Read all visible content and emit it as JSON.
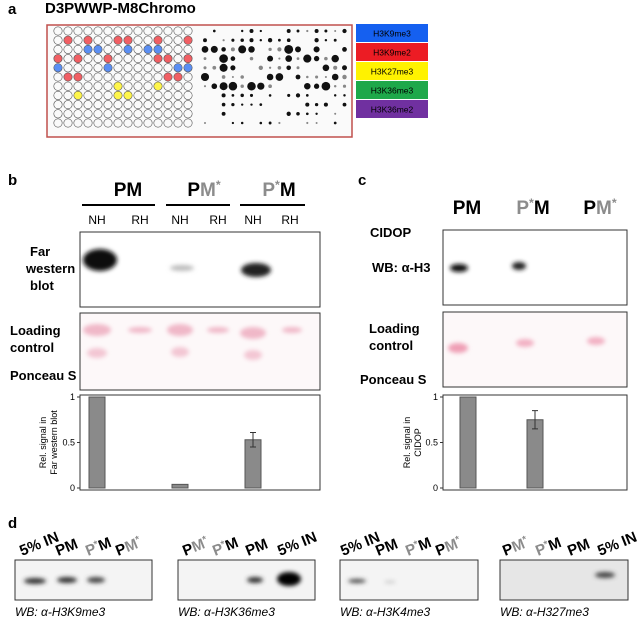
{
  "panel_a": {
    "letter": "a",
    "title": "D3PWWP-M8Chromo",
    "legend": [
      {
        "label": "H3K9me3",
        "color": "#1560f0"
      },
      {
        "label": "H3K9me2",
        "color": "#ec1c24"
      },
      {
        "label": "H3K27me3",
        "color": "#fff200"
      },
      {
        "label": "H3K36me3",
        "color": "#1ea84a"
      },
      {
        "label": "H3K36me2",
        "color": "#7030a0"
      }
    ]
  },
  "panel_b": {
    "letter": "b",
    "lanes": [
      [
        {
          "text": "PM"
        }
      ],
      [
        {
          "text": "P"
        },
        {
          "text": "M",
          "gray": true
        },
        {
          "text": "*",
          "gray": true,
          "sup": true
        }
      ],
      [
        {
          "text": "P",
          "gray": true
        },
        {
          "text": "*",
          "gray": true,
          "sup": true
        },
        {
          "text": "M"
        }
      ]
    ],
    "sub_lanes": [
      "NH",
      "RH",
      "NH",
      "RH",
      "NH",
      "RH"
    ],
    "far_western": [
      "Far",
      "western",
      "blot"
    ],
    "loading": [
      "Loading",
      "control"
    ],
    "ponceau": "Ponceau S",
    "chart": {
      "ylabel": [
        "Rel. signal in",
        "Far western blot"
      ],
      "ylim": [
        0,
        1
      ],
      "yticks": [
        0,
        0.5,
        1
      ],
      "values": [
        1,
        0,
        0.04,
        0,
        0.53,
        0
      ],
      "errors": [
        null,
        null,
        null,
        null,
        0.08,
        null
      ]
    }
  },
  "panel_c": {
    "letter": "c",
    "lanes": [
      [
        {
          "text": "PM"
        }
      ],
      [
        {
          "text": "P",
          "gray": true
        },
        {
          "text": "*",
          "gray": true,
          "sup": true
        },
        {
          "text": "M"
        }
      ],
      [
        {
          "text": "P"
        },
        {
          "text": "M",
          "gray": true
        },
        {
          "text": "*",
          "gray": true,
          "sup": true
        }
      ]
    ],
    "cidop": "CIDOP",
    "wb": "WB: α-H3",
    "loading": [
      "Loading",
      "control"
    ],
    "ponceau": "Ponceau S",
    "chart": {
      "ylabel": [
        "Rel. signal in",
        "CIDOP"
      ],
      "ylim": [
        0,
        1
      ],
      "yticks": [
        0,
        0.5,
        1
      ],
      "values": [
        1,
        0.75,
        0
      ],
      "errors": [
        null,
        0.1,
        null
      ]
    }
  },
  "panel_d": {
    "letter": "d",
    "blots": [
      {
        "lanes": [
          [
            {
              "text": "5% IN"
            }
          ],
          [
            {
              "text": "PM"
            }
          ],
          [
            {
              "text": "P",
              "gray": true
            },
            {
              "text": "*",
              "gray": true,
              "sup": true
            },
            {
              "text": "M"
            }
          ],
          [
            {
              "text": "P"
            },
            {
              "text": "M",
              "gray": true
            },
            {
              "text": "*",
              "gray": true,
              "sup": true
            }
          ]
        ],
        "caption": "WB: α-H3K9me3"
      },
      {
        "lanes": [
          [
            {
              "text": "P"
            },
            {
              "text": "M",
              "gray": true
            },
            {
              "text": "*",
              "gray": true,
              "sup": true
            }
          ],
          [
            {
              "text": "P",
              "gray": true
            },
            {
              "text": "*",
              "gray": true,
              "sup": true
            },
            {
              "text": "M"
            }
          ],
          [
            {
              "text": "PM"
            }
          ],
          [
            {
              "text": "5% IN"
            }
          ]
        ],
        "caption": "WB: α-H3K36me3"
      },
      {
        "lanes": [
          [
            {
              "text": "5% IN"
            }
          ],
          [
            {
              "text": "PM"
            }
          ],
          [
            {
              "text": "P",
              "gray": true
            },
            {
              "text": "*",
              "gray": true,
              "sup": true
            },
            {
              "text": "M"
            }
          ],
          [
            {
              "text": "P"
            },
            {
              "text": "M",
              "gray": true
            },
            {
              "text": "*",
              "gray": true,
              "sup": true
            }
          ]
        ],
        "caption": "WB: α-H3K4me3"
      },
      {
        "lanes": [
          [
            {
              "text": "P"
            },
            {
              "text": "M",
              "gray": true
            },
            {
              "text": "*",
              "gray": true,
              "sup": true
            }
          ],
          [
            {
              "text": "P",
              "gray": true
            },
            {
              "text": "*",
              "gray": true,
              "sup": true
            },
            {
              "text": "M"
            }
          ],
          [
            {
              "text": "PM"
            }
          ],
          [
            {
              "text": "5% IN"
            }
          ]
        ],
        "caption": "WB: α-H327me3"
      }
    ]
  }
}
